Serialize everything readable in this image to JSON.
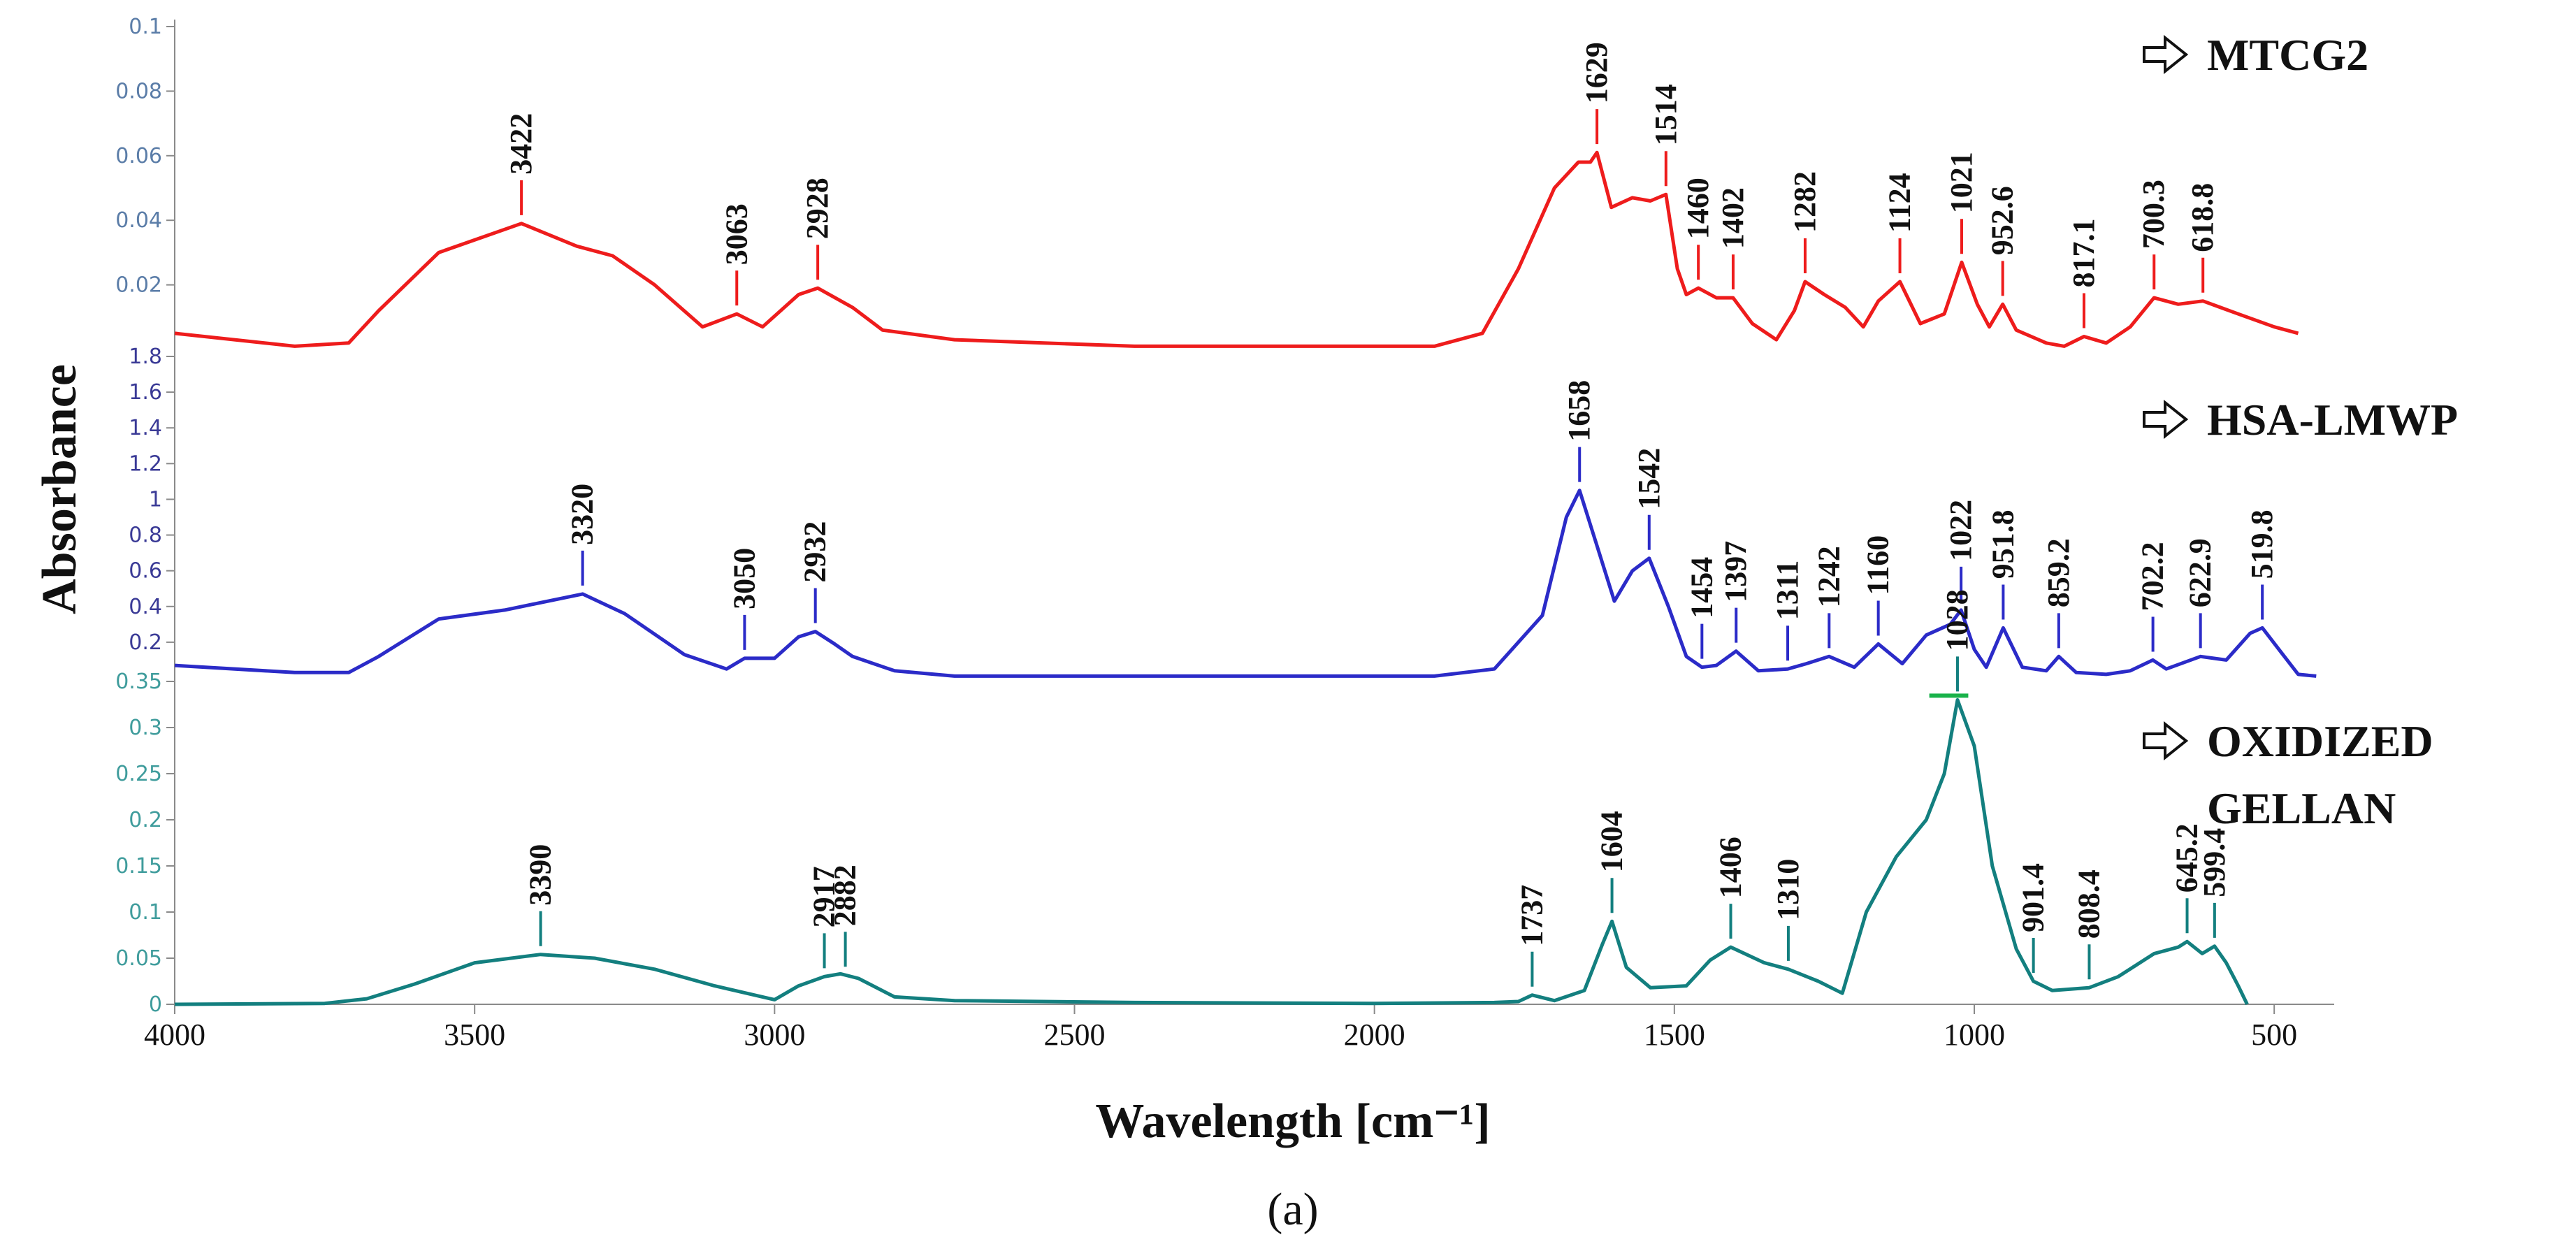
{
  "chart_data": {
    "type": "line",
    "title": "",
    "xlabel": "Wavelength [cm⁻¹]",
    "ylabel": "Absorbance",
    "caption": "(a)",
    "x_range": [
      4000,
      400
    ],
    "x_ticks": [
      4000,
      3500,
      3000,
      2500,
      2000,
      1500,
      1000,
      500
    ],
    "x_tick_labels": [
      "4000",
      "3500",
      "3000",
      "2500",
      "2000",
      "1500",
      "1000",
      "500"
    ],
    "series": [
      {
        "name": "MTCG2",
        "legend_label": "MTCG2",
        "color": "#ee1c1c",
        "ylim": [
          0,
          0.1
        ],
        "y_ticks": [
          0.02,
          0.04,
          0.06,
          0.08,
          0.1
        ],
        "y_tick_labels": [
          "0.02",
          "0.04",
          "0.06",
          "0.08",
          "0.1"
        ],
        "points": [
          [
            4000,
            0.005
          ],
          [
            3800,
            0.001
          ],
          [
            3710,
            0.002
          ],
          [
            3660,
            0.012
          ],
          [
            3560,
            0.03
          ],
          [
            3422,
            0.039
          ],
          [
            3330,
            0.032
          ],
          [
            3270,
            0.029
          ],
          [
            3200,
            0.02
          ],
          [
            3120,
            0.007
          ],
          [
            3063,
            0.011
          ],
          [
            3020,
            0.007
          ],
          [
            2960,
            0.017
          ],
          [
            2928,
            0.019
          ],
          [
            2870,
            0.013
          ],
          [
            2820,
            0.006
          ],
          [
            2700,
            0.003
          ],
          [
            2400,
            0.001
          ],
          [
            1900,
            0.001
          ],
          [
            1820,
            0.005
          ],
          [
            1760,
            0.025
          ],
          [
            1700,
            0.05
          ],
          [
            1660,
            0.058
          ],
          [
            1640,
            0.058
          ],
          [
            1629,
            0.061
          ],
          [
            1605,
            0.044
          ],
          [
            1570,
            0.047
          ],
          [
            1540,
            0.046
          ],
          [
            1514,
            0.048
          ],
          [
            1495,
            0.025
          ],
          [
            1480,
            0.017
          ],
          [
            1460,
            0.019
          ],
          [
            1430,
            0.016
          ],
          [
            1402,
            0.016
          ],
          [
            1370,
            0.008
          ],
          [
            1330,
            0.003
          ],
          [
            1300,
            0.012
          ],
          [
            1282,
            0.021
          ],
          [
            1250,
            0.017
          ],
          [
            1215,
            0.013
          ],
          [
            1185,
            0.007
          ],
          [
            1160,
            0.015
          ],
          [
            1124,
            0.021
          ],
          [
            1090,
            0.008
          ],
          [
            1050,
            0.011
          ],
          [
            1021,
            0.027
          ],
          [
            995,
            0.014
          ],
          [
            975,
            0.007
          ],
          [
            952.6,
            0.014
          ],
          [
            930,
            0.006
          ],
          [
            880,
            0.002
          ],
          [
            850,
            0.001
          ],
          [
            817.1,
            0.004
          ],
          [
            780,
            0.002
          ],
          [
            740,
            0.007
          ],
          [
            700.3,
            0.016
          ],
          [
            660,
            0.014
          ],
          [
            618.8,
            0.015
          ],
          [
            560,
            0.011
          ],
          [
            500,
            0.007
          ],
          [
            460,
            0.005
          ]
        ]
      },
      {
        "name": "HSA-LMWP",
        "legend_label": "HSA-LMWP",
        "color": "#2b2bc8",
        "ylim": [
          0,
          1.8
        ],
        "y_ticks": [
          0.2,
          0.4,
          0.6,
          0.8,
          1,
          1.2,
          1.4,
          1.6,
          1.8
        ],
        "y_tick_labels": [
          "0.2",
          "0.4",
          "0.6",
          "0.8",
          "1",
          "1.2",
          "1.4",
          "1.6",
          "1.8"
        ],
        "points": [
          [
            4000,
            0.07
          ],
          [
            3800,
            0.03
          ],
          [
            3710,
            0.03
          ],
          [
            3660,
            0.12
          ],
          [
            3560,
            0.33
          ],
          [
            3450,
            0.38
          ],
          [
            3320,
            0.47
          ],
          [
            3250,
            0.36
          ],
          [
            3150,
            0.13
          ],
          [
            3080,
            0.05
          ],
          [
            3050,
            0.11
          ],
          [
            3000,
            0.11
          ],
          [
            2960,
            0.23
          ],
          [
            2932,
            0.26
          ],
          [
            2900,
            0.19
          ],
          [
            2870,
            0.12
          ],
          [
            2800,
            0.04
          ],
          [
            2700,
            0.01
          ],
          [
            2400,
            0.01
          ],
          [
            1900,
            0.01
          ],
          [
            1800,
            0.05
          ],
          [
            1720,
            0.35
          ],
          [
            1680,
            0.9
          ],
          [
            1658,
            1.05
          ],
          [
            1630,
            0.75
          ],
          [
            1600,
            0.43
          ],
          [
            1570,
            0.6
          ],
          [
            1542,
            0.67
          ],
          [
            1510,
            0.4
          ],
          [
            1480,
            0.12
          ],
          [
            1454,
            0.06
          ],
          [
            1430,
            0.07
          ],
          [
            1397,
            0.15
          ],
          [
            1360,
            0.04
          ],
          [
            1311,
            0.05
          ],
          [
            1280,
            0.08
          ],
          [
            1242,
            0.12
          ],
          [
            1200,
            0.06
          ],
          [
            1160,
            0.19
          ],
          [
            1120,
            0.08
          ],
          [
            1080,
            0.24
          ],
          [
            1040,
            0.3
          ],
          [
            1022,
            0.38
          ],
          [
            1000,
            0.16
          ],
          [
            980,
            0.06
          ],
          [
            951.8,
            0.28
          ],
          [
            920,
            0.06
          ],
          [
            880,
            0.04
          ],
          [
            859.2,
            0.12
          ],
          [
            830,
            0.03
          ],
          [
            780,
            0.02
          ],
          [
            740,
            0.04
          ],
          [
            702.2,
            0.1
          ],
          [
            680,
            0.05
          ],
          [
            622.9,
            0.12
          ],
          [
            580,
            0.1
          ],
          [
            540,
            0.25
          ],
          [
            519.8,
            0.28
          ],
          [
            490,
            0.15
          ],
          [
            460,
            0.02
          ],
          [
            430,
            0.01
          ]
        ]
      },
      {
        "name": "OXIDIZED GELLAN",
        "legend_label_lines": [
          "OXIDIZED",
          "GELLAN"
        ],
        "color": "#137f7f",
        "ylim": [
          0,
          0.35
        ],
        "y_ticks": [
          0,
          0.05,
          0.1,
          0.15,
          0.2,
          0.25,
          0.3,
          0.35
        ],
        "y_tick_labels": [
          "0",
          "0.05",
          "0.1",
          "0.15",
          "0.2",
          "0.25",
          "0.3",
          "0.35"
        ],
        "points": [
          [
            4000,
            0.0
          ],
          [
            3750,
            0.001
          ],
          [
            3680,
            0.006
          ],
          [
            3600,
            0.022
          ],
          [
            3500,
            0.045
          ],
          [
            3390,
            0.054
          ],
          [
            3300,
            0.05
          ],
          [
            3200,
            0.038
          ],
          [
            3100,
            0.02
          ],
          [
            3000,
            0.005
          ],
          [
            2960,
            0.02
          ],
          [
            2917,
            0.03
          ],
          [
            2890,
            0.033
          ],
          [
            2860,
            0.028
          ],
          [
            2800,
            0.008
          ],
          [
            2700,
            0.004
          ],
          [
            2400,
            0.002
          ],
          [
            2000,
            0.001
          ],
          [
            1800,
            0.002
          ],
          [
            1760,
            0.003
          ],
          [
            1737,
            0.01
          ],
          [
            1700,
            0.004
          ],
          [
            1650,
            0.015
          ],
          [
            1620,
            0.065
          ],
          [
            1604,
            0.09
          ],
          [
            1580,
            0.04
          ],
          [
            1540,
            0.018
          ],
          [
            1480,
            0.02
          ],
          [
            1440,
            0.048
          ],
          [
            1406,
            0.062
          ],
          [
            1350,
            0.045
          ],
          [
            1310,
            0.038
          ],
          [
            1260,
            0.025
          ],
          [
            1220,
            0.012
          ],
          [
            1180,
            0.1
          ],
          [
            1130,
            0.16
          ],
          [
            1080,
            0.2
          ],
          [
            1050,
            0.25
          ],
          [
            1028,
            0.33
          ],
          [
            1000,
            0.28
          ],
          [
            970,
            0.15
          ],
          [
            930,
            0.06
          ],
          [
            901.4,
            0.025
          ],
          [
            870,
            0.015
          ],
          [
            808.4,
            0.018
          ],
          [
            760,
            0.03
          ],
          [
            700,
            0.055
          ],
          [
            660,
            0.062
          ],
          [
            645.2,
            0.068
          ],
          [
            620,
            0.055
          ],
          [
            599.4,
            0.063
          ],
          [
            580,
            0.045
          ],
          [
            560,
            0.02
          ],
          [
            545,
            0.0
          ]
        ]
      }
    ],
    "peak_labels": [
      [
        "3422",
        "3063",
        "2928",
        "1629",
        "1514",
        "1460",
        "1402",
        "1282",
        "1124",
        "1021",
        "952.6",
        "817.1",
        "700.3",
        "618.8"
      ],
      [
        "3320",
        "3050",
        "2932",
        "1658",
        "1542",
        "1454",
        "1397",
        "1311",
        "1242",
        "1160",
        "1022",
        "951.8",
        "859.2",
        "702.2",
        "622.9",
        "519.8"
      ],
      [
        "3390",
        "2917",
        "2882",
        "1737",
        "1604",
        "1406",
        "1310",
        "1028",
        "901.4",
        "808.4",
        "645.2",
        "599.4"
      ]
    ],
    "legend": [
      "MTCG2",
      "HSA-LMWP",
      "OXIDIZED GELLAN"
    ],
    "legend_placement": "right"
  }
}
